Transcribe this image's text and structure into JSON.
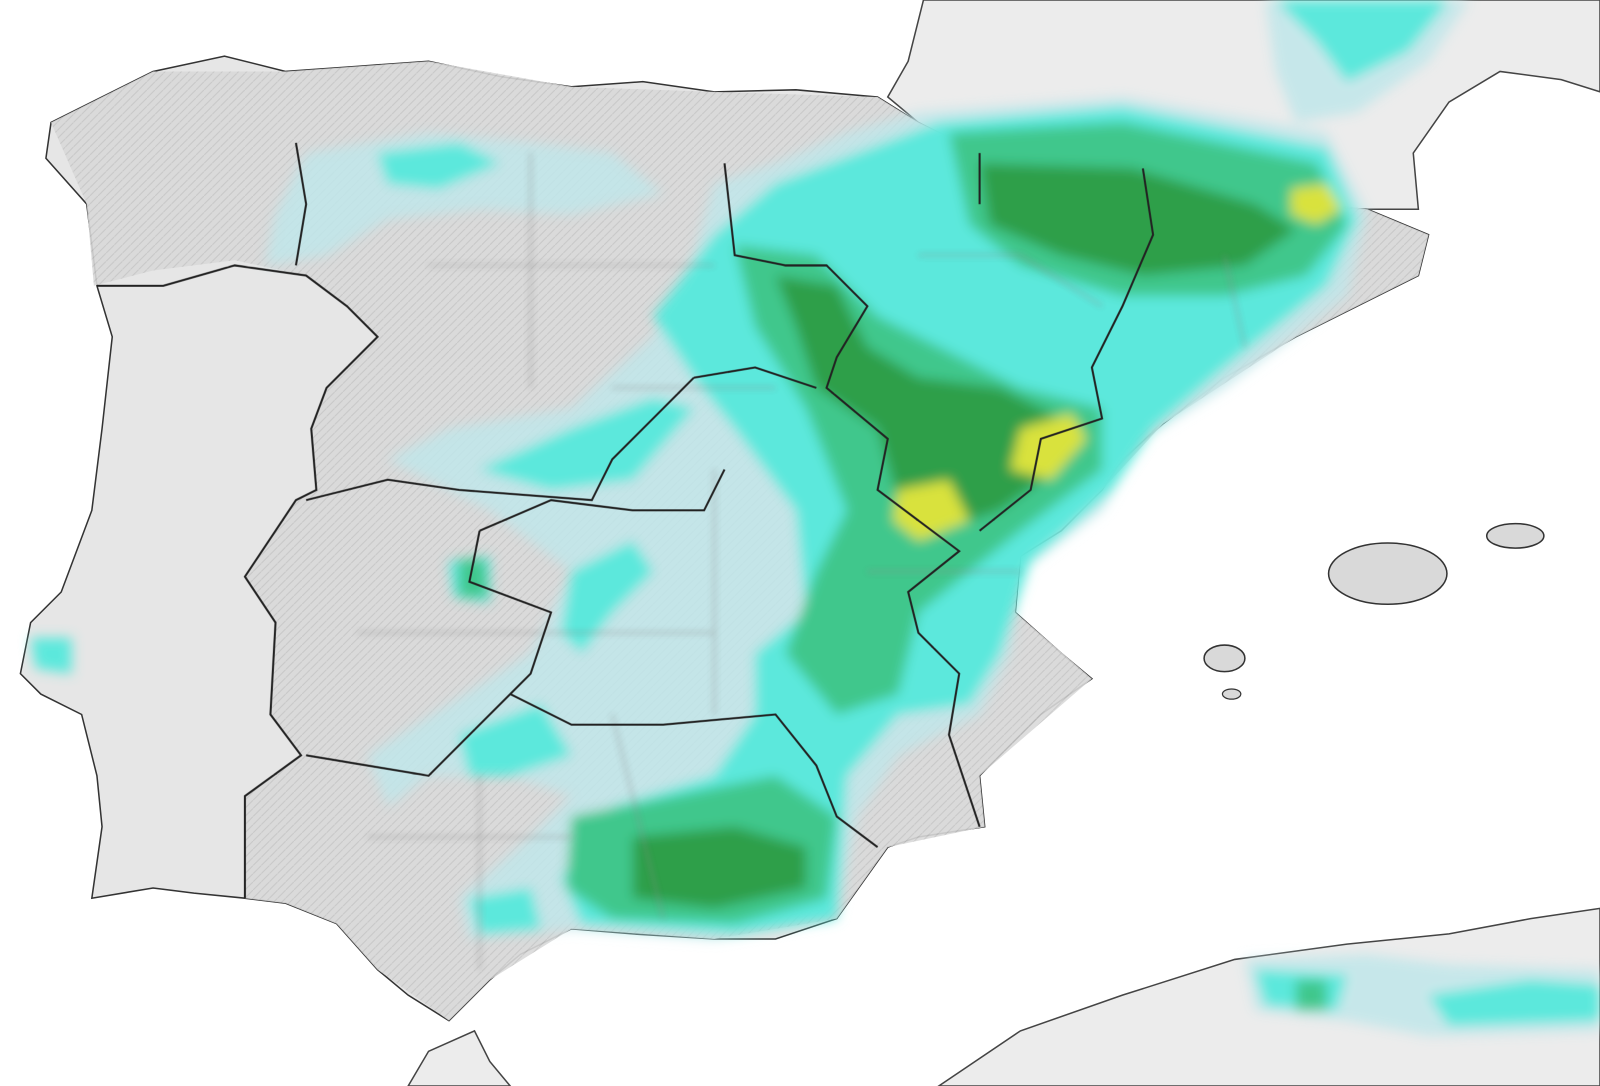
{
  "map": {
    "colors": {
      "sea": "#ffffff",
      "land": "#ececec",
      "spain_relief": "#d6d6d6",
      "border_major": "#222222",
      "border_minor": "#8a8a8a",
      "precip_very_light": "#bfe6ea",
      "precip_light": "#5ce8dc",
      "precip_moderate": "#3fc78c",
      "precip_heavy": "#2f9f48",
      "precip_very_heavy": "#d9e23e"
    }
  }
}
